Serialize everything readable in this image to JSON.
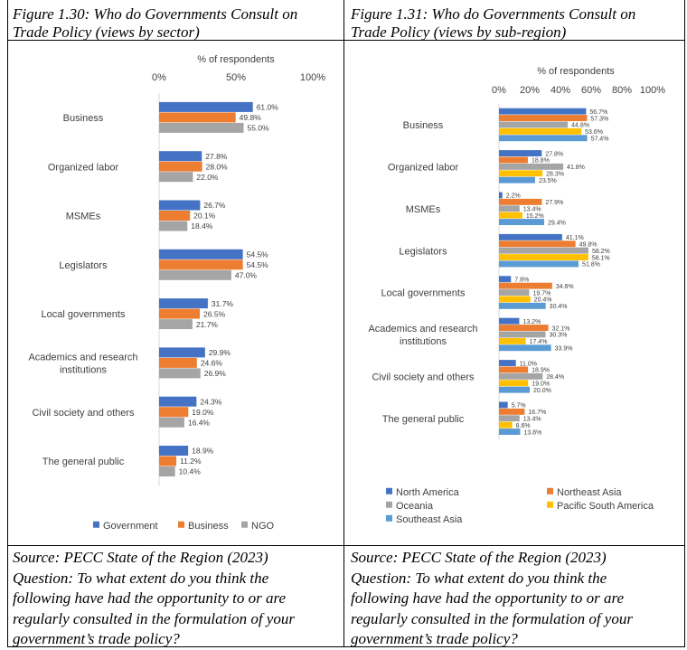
{
  "left_panel": {
    "title_line1": "Figure 1.30: Who do Governments Consult on",
    "title_line2": "Trade Policy (views by sector)",
    "source": "Source: PECC State of the Region (2023)",
    "question_lines": [
      "Question: To what extent do you think the",
      "following have had the opportunity to or are",
      "regularly consulted in the formulation of your",
      "government’s trade policy?"
    ]
  },
  "right_panel": {
    "title_line1": "Figure 1.31: Who do Governments Consult on",
    "title_line2": "Trade Policy (views by sub-region)",
    "source": "Source: PECC State of the Region (2023)",
    "question_lines": [
      "Question: To what extent do you think the",
      "following have had the opportunity to or are",
      "regularly consulted in the formulation of your",
      "government’s trade policy?"
    ]
  },
  "chart_data": [
    {
      "type": "bar",
      "orientation": "horizontal",
      "title": "",
      "xlabel": "% of respondents",
      "xticks": [
        "0%",
        "50%",
        "100%"
      ],
      "xlim": [
        0,
        100
      ],
      "grid": false,
      "legend_position": "bottom",
      "categories": [
        [
          "Business"
        ],
        [
          "Organized labor"
        ],
        [
          "MSMEs"
        ],
        [
          "Legislators"
        ],
        [
          "Local governments"
        ],
        [
          "Academics and research",
          "institutions"
        ],
        [
          "Civil society and others"
        ],
        [
          "The general public"
        ]
      ],
      "series": [
        {
          "name": "Government",
          "color": "#4472C4",
          "values": [
            61.0,
            27.8,
            26.7,
            54.5,
            31.7,
            29.9,
            24.3,
            18.9
          ]
        },
        {
          "name": "Business",
          "color": "#ED7D31",
          "values": [
            49.8,
            28.0,
            20.1,
            54.5,
            26.5,
            24.6,
            19.0,
            11.2
          ]
        },
        {
          "name": "NGO",
          "color": "#A5A5A5",
          "values": [
            55.0,
            22.0,
            18.4,
            47.0,
            21.7,
            26.9,
            16.4,
            10.4
          ]
        }
      ]
    },
    {
      "type": "bar",
      "orientation": "horizontal",
      "title": "",
      "xlabel": "% of respondents",
      "xticks": [
        "0%",
        "20%",
        "40%",
        "60%",
        "80%",
        "100%"
      ],
      "xlim": [
        0,
        100
      ],
      "grid": false,
      "legend_position": "bottom",
      "categories": [
        [
          "Business"
        ],
        [
          "Organized labor"
        ],
        [
          "MSMEs"
        ],
        [
          "Legislators"
        ],
        [
          "Local governments"
        ],
        [
          "Academics and research",
          "institutions"
        ],
        [
          "Civil society and others"
        ],
        [
          "The general public"
        ]
      ],
      "series": [
        {
          "name": "North America",
          "color": "#4472C4",
          "values": [
            56.7,
            27.8,
            2.2,
            41.1,
            7.8,
            13.2,
            11.0,
            5.7
          ]
        },
        {
          "name": "Northeast Asia",
          "color": "#ED7D31",
          "values": [
            57.3,
            18.8,
            27.9,
            49.8,
            34.6,
            32.1,
            18.9,
            16.7
          ]
        },
        {
          "name": "Oceania",
          "color": "#A5A5A5",
          "values": [
            44.8,
            41.8,
            13.4,
            58.2,
            19.7,
            30.3,
            28.4,
            13.4
          ]
        },
        {
          "name": "Pacific South America",
          "color": "#FFC000",
          "values": [
            53.6,
            28.3,
            15.2,
            58.1,
            20.4,
            17.4,
            19.0,
            8.6
          ]
        },
        {
          "name": "Southeast Asia",
          "color": "#5B9BD5",
          "values": [
            57.4,
            23.5,
            29.4,
            51.8,
            30.4,
            33.9,
            20.0,
            13.8
          ]
        }
      ]
    }
  ]
}
